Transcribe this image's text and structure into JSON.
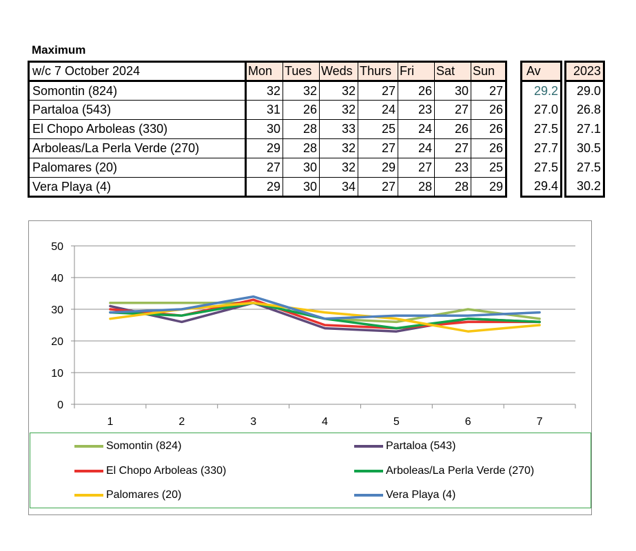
{
  "heading": "Maximum",
  "table": {
    "week_label": "w/c 7 October 2024",
    "days": [
      "Mon",
      "Tues",
      "Weds",
      "Thurs",
      "Fri",
      "Sat",
      "Sun"
    ],
    "av_label": "Av",
    "year_label": "2023",
    "rows": [
      {
        "name": "Somontin (824)",
        "values": [
          "32",
          "32",
          "32",
          "27",
          "26",
          "30",
          "27"
        ],
        "av": "29.2",
        "prev": "29.0"
      },
      {
        "name": "Partaloa (543)",
        "values": [
          "31",
          "26",
          "32",
          "24",
          "23",
          "27",
          "26"
        ],
        "av": "27.0",
        "prev": "26.8"
      },
      {
        "name": "El Chopo  Arboleas (330)",
        "values": [
          "30",
          "28",
          "33",
          "25",
          "24",
          "26",
          "26"
        ],
        "av": "27.5",
        "prev": "27.1"
      },
      {
        "name": "Arboleas/La Perla Verde (270)",
        "values": [
          "29",
          "28",
          "32",
          "27",
          "24",
          "27",
          "26"
        ],
        "av": "27.7",
        "prev": "30.5"
      },
      {
        "name": "Palomares (20)",
        "values": [
          "27",
          "30",
          "32",
          "29",
          "27",
          "23",
          "25"
        ],
        "av": "27.5",
        "prev": "27.5"
      },
      {
        "name": "Vera Playa (4)",
        "values": [
          "29",
          "30",
          "34",
          "27",
          "28",
          "28",
          "29"
        ],
        "av": "29.4",
        "prev": "30.2"
      }
    ]
  },
  "chart_data": {
    "type": "line",
    "x": [
      1,
      2,
      3,
      4,
      5,
      6,
      7
    ],
    "ylim": [
      0,
      50
    ],
    "yticks": [
      0,
      10,
      20,
      30,
      40,
      50
    ],
    "grid": true,
    "legend_position": "bottom",
    "series": [
      {
        "name": "Somontin (824)",
        "color": "#9bbb59",
        "values": [
          32,
          32,
          32,
          27,
          26,
          30,
          27
        ]
      },
      {
        "name": "Partaloa (543)",
        "color": "#604a7b",
        "values": [
          31,
          26,
          32,
          24,
          23,
          27,
          26
        ]
      },
      {
        "name": "El Chopo  Arboleas (330)",
        "color": "#e8322e",
        "values": [
          30,
          28,
          33,
          25,
          24,
          26,
          26
        ]
      },
      {
        "name": "Arboleas/La Perla Verde (270)",
        "color": "#12a24a",
        "values": [
          29,
          28,
          32,
          27,
          24,
          27,
          26
        ]
      },
      {
        "name": "Palomares (20)",
        "color": "#f8c512",
        "values": [
          27,
          30,
          32,
          29,
          27,
          23,
          25
        ]
      },
      {
        "name": "Vera Playa (4)",
        "color": "#4f81bd",
        "values": [
          29,
          30,
          34,
          27,
          28,
          28,
          29
        ]
      }
    ]
  }
}
